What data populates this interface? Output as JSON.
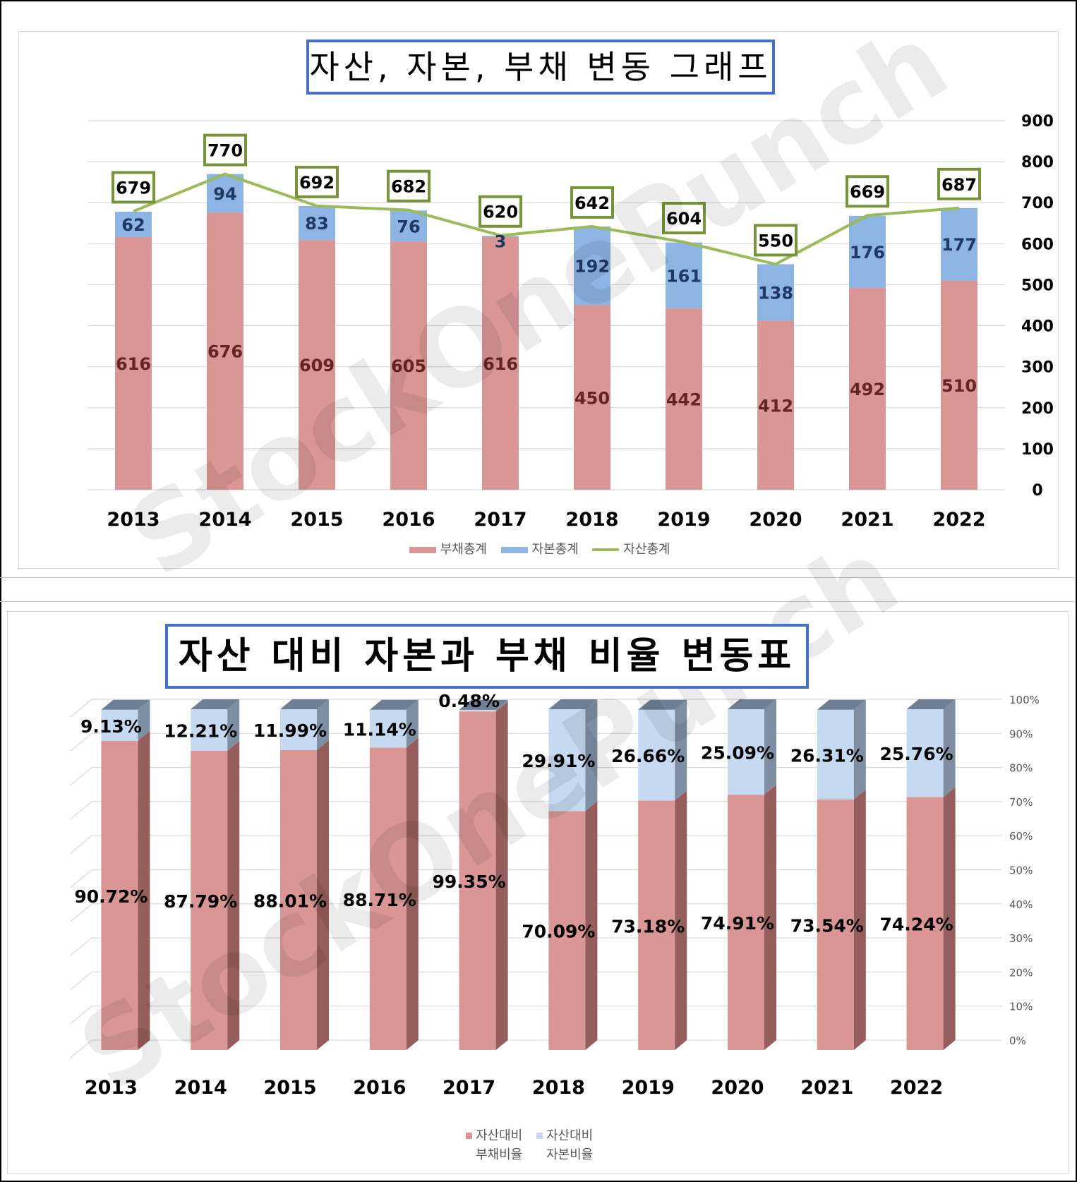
{
  "chart1_title": "자산, 자본, 부채 변동 그래프",
  "chart2_title": "자산 대비 자본과 부채 비율 변동표",
  "watermark": "StockOnePunch",
  "colors": {
    "liabilities": "#da9694",
    "equity": "#8db4e2",
    "assets_line": "#9bbb59",
    "ratio_liab": "#da9694",
    "ratio_equity": "#c5d9f1",
    "label_box": "#77933c",
    "liab_label": "#632523",
    "equity_label": "#1f3864",
    "title_border": "#4472c4"
  },
  "chart_data": [
    {
      "type": "bar",
      "stacked": true,
      "title": "자산, 자본, 부채 변동 그래프",
      "categories": [
        "2013",
        "2014",
        "2015",
        "2016",
        "2017",
        "2018",
        "2019",
        "2020",
        "2021",
        "2022"
      ],
      "series": [
        {
          "name": "부채총계",
          "values": [
            616,
            676,
            609,
            605,
            616,
            450,
            442,
            412,
            492,
            510
          ]
        },
        {
          "name": "자본총계",
          "values": [
            62,
            94,
            83,
            76,
            3,
            192,
            161,
            138,
            176,
            177
          ]
        }
      ],
      "line_series": {
        "name": "자산총계",
        "values": [
          679,
          770,
          692,
          682,
          620,
          642,
          604,
          550,
          669,
          687
        ]
      },
      "ylim": [
        0,
        900
      ],
      "yticks": [
        0,
        100,
        200,
        300,
        400,
        500,
        600,
        700,
        800,
        900
      ],
      "y_axis_side": "right",
      "grid": true,
      "legend": "bottom"
    },
    {
      "type": "bar",
      "stacked": true,
      "title": "자산 대비 자본과 부채 비율 변동표",
      "categories": [
        "2013",
        "2014",
        "2015",
        "2016",
        "2017",
        "2018",
        "2019",
        "2020",
        "2021",
        "2022"
      ],
      "series": [
        {
          "name": "자산대비 부채비율",
          "values": [
            90.72,
            87.79,
            88.01,
            88.71,
            99.35,
            70.09,
            73.18,
            74.91,
            73.54,
            74.24
          ],
          "labels": [
            "90.72%",
            "87.79%",
            "88.01%",
            "88.71%",
            "99.35%",
            "70.09%",
            "73.18%",
            "74.91%",
            "73.54%",
            "74.24%"
          ]
        },
        {
          "name": "자산대비 자본비율",
          "values": [
            9.13,
            12.21,
            11.99,
            11.14,
            0.48,
            29.91,
            26.66,
            25.09,
            26.31,
            25.76
          ],
          "labels": [
            "9.13%",
            "12.21%",
            "11.99%",
            "11.14%",
            "0.48%",
            "29.91%",
            "26.66%",
            "25.09%",
            "26.31%",
            "25.76%"
          ]
        }
      ],
      "ylim": [
        0,
        100
      ],
      "yticks": [
        "0%",
        "10%",
        "20%",
        "30%",
        "40%",
        "50%",
        "60%",
        "70%",
        "80%",
        "90%",
        "100%"
      ],
      "y_axis_side": "right",
      "grid": true,
      "style_3d": true,
      "legend": "bottom"
    }
  ],
  "legend1": [
    "부채총계",
    "자본총계",
    "자산총계"
  ],
  "legend2": [
    {
      "line1": "자산대비",
      "line2": "부채비율"
    },
    {
      "line1": "자산대비",
      "line2": "자본비율"
    }
  ]
}
